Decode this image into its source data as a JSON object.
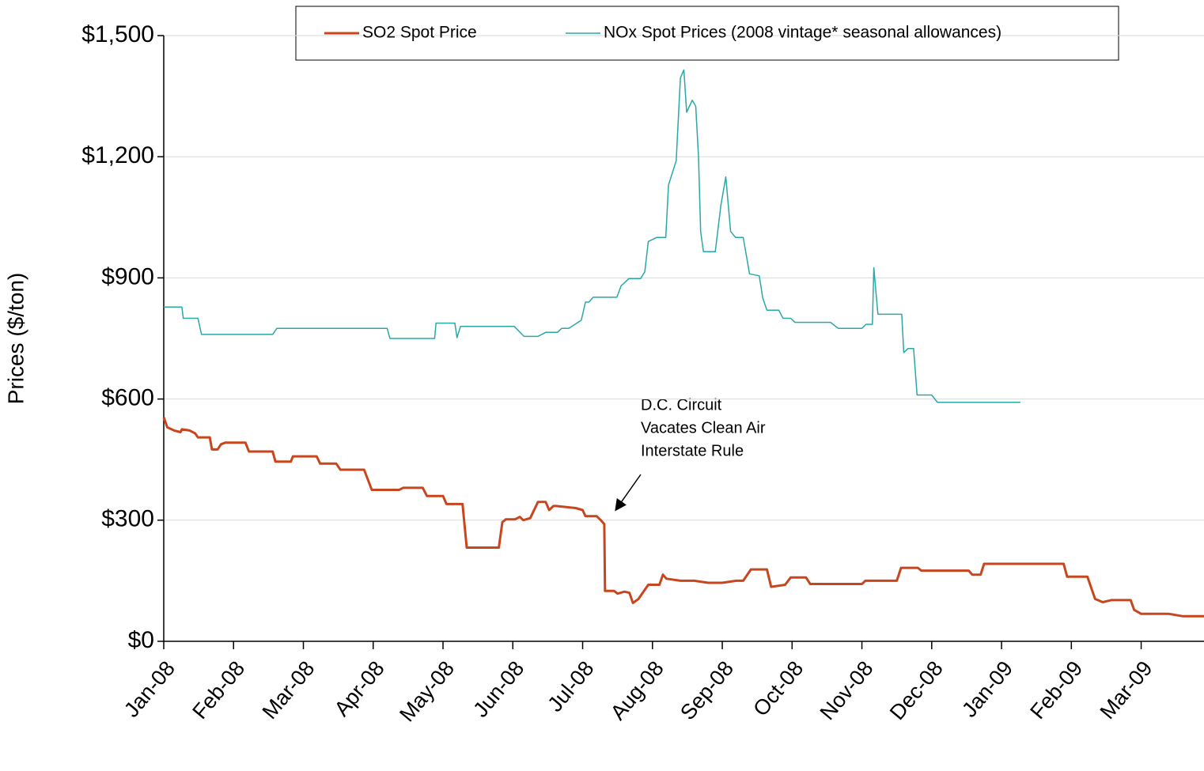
{
  "chart_data": {
    "type": "line",
    "ylabel": "Prices  ($/ton)",
    "annotation": [
      "D.C. Circuit",
      "Vacates Clean Air",
      "Interstate Rule"
    ],
    "xlim": [
      0,
      14.9
    ],
    "xticks": [
      {
        "value": 0,
        "label": "Jan-08"
      },
      {
        "value": 1,
        "label": "Feb-08"
      },
      {
        "value": 2,
        "label": "Mar-08"
      },
      {
        "value": 3,
        "label": "Apr-08"
      },
      {
        "value": 4,
        "label": "May-08"
      },
      {
        "value": 5,
        "label": "Jun-08"
      },
      {
        "value": 6,
        "label": "Jul-08"
      },
      {
        "value": 7,
        "label": "Aug-08"
      },
      {
        "value": 8,
        "label": "Sep-08"
      },
      {
        "value": 9,
        "label": "Oct-08"
      },
      {
        "value": 10,
        "label": "Nov-08"
      },
      {
        "value": 11,
        "label": "Dec-08"
      },
      {
        "value": 12,
        "label": "Jan-09"
      },
      {
        "value": 13,
        "label": "Feb-09"
      },
      {
        "value": 14,
        "label": "Mar-09"
      }
    ],
    "ylim": [
      0,
      1500
    ],
    "yticks": [
      {
        "value": 0,
        "label": "$0"
      },
      {
        "value": 300,
        "label": "$300"
      },
      {
        "value": 600,
        "label": "$600"
      },
      {
        "value": 900,
        "label": "$900"
      },
      {
        "value": 1200,
        "label": "$1,200"
      },
      {
        "value": 1500,
        "label": "$1,500"
      }
    ],
    "grid": true,
    "legend": "top",
    "series": [
      {
        "name": "SO2 Spot Price",
        "color": "#c8461e",
        "width": 3,
        "x": [
          0,
          0.05,
          0.15,
          0.24,
          0.26,
          0.37,
          0.45,
          0.49,
          0.66,
          0.69,
          0.77,
          0.82,
          0.88,
          1.17,
          1.22,
          1.56,
          1.6,
          1.82,
          1.85,
          2.19,
          2.24,
          2.47,
          2.53,
          2.87,
          2.98,
          3.37,
          3.43,
          3.71,
          3.77,
          4.0,
          4.05,
          4.28,
          4.34,
          4.8,
          4.85,
          4.9,
          5.03,
          5.1,
          5.15,
          5.25,
          5.36,
          5.47,
          5.52,
          5.58,
          5.62,
          5.9,
          6.0,
          6.04,
          6.2,
          6.26,
          6.31,
          6.32,
          6.45,
          6.5,
          6.6,
          6.67,
          6.72,
          6.8,
          6.94,
          7.1,
          7.15,
          7.2,
          7.4,
          7.6,
          7.8,
          8.0,
          8.2,
          8.3,
          8.41,
          8.64,
          8.7,
          8.9,
          8.98,
          9.2,
          9.26,
          10.0,
          10.05,
          10.5,
          10.56,
          10.8,
          10.85,
          11.53,
          11.58,
          11.7,
          11.75,
          12.89,
          12.94,
          13.23,
          13.34,
          13.45,
          13.57,
          13.85,
          13.9,
          14.0,
          14.4,
          14.6,
          14.9
        ],
        "values": [
          555,
          530,
          522,
          518,
          525,
          522,
          515,
          505,
          505,
          475,
          475,
          488,
          492,
          492,
          470,
          470,
          445,
          445,
          458,
          458,
          440,
          440,
          425,
          425,
          375,
          375,
          380,
          380,
          360,
          360,
          340,
          340,
          232,
          232,
          295,
          302,
          302,
          308,
          300,
          305,
          345,
          345,
          325,
          335,
          335,
          330,
          325,
          310,
          310,
          300,
          290,
          125,
          125,
          118,
          123,
          120,
          95,
          105,
          140,
          140,
          165,
          155,
          150,
          150,
          145,
          145,
          150,
          150,
          178,
          178,
          135,
          140,
          158,
          158,
          142,
          142,
          150,
          150,
          182,
          182,
          175,
          175,
          165,
          165,
          192,
          192,
          160,
          160,
          105,
          97,
          102,
          102,
          78,
          68,
          68,
          62,
          62
        ]
      },
      {
        "name": "NOx Spot Prices (2008 vintage* seasonal allowances)",
        "color": "#2aa8a8",
        "width": 1.5,
        "x": [
          0,
          0.26,
          0.28,
          0.49,
          0.54,
          1.56,
          1.62,
          3.2,
          3.24,
          3.88,
          3.9,
          4.17,
          4.2,
          4.25,
          5.02,
          5.16,
          5.36,
          5.47,
          5.64,
          5.7,
          5.8,
          5.98,
          6.04,
          6.09,
          6.15,
          6.49,
          6.55,
          6.66,
          6.83,
          6.89,
          6.94,
          7.06,
          7.19,
          7.23,
          7.34,
          7.4,
          7.45,
          7.49,
          7.57,
          7.62,
          7.66,
          7.69,
          7.73,
          7.9,
          7.98,
          8.05,
          8.12,
          8.19,
          8.3,
          8.39,
          8.53,
          8.58,
          8.64,
          8.81,
          8.87,
          8.98,
          9.04,
          9.55,
          9.66,
          10.0,
          10.06,
          10.15,
          10.17,
          10.23,
          10.57,
          10.6,
          10.66,
          10.74,
          10.79,
          11.0,
          11.08,
          12.27
        ],
        "values": [
          828,
          828,
          800,
          800,
          760,
          760,
          775,
          775,
          750,
          750,
          788,
          788,
          752,
          780,
          780,
          755,
          755,
          765,
          765,
          775,
          775,
          795,
          840,
          840,
          852,
          852,
          880,
          898,
          898,
          915,
          990,
          1000,
          1000,
          1130,
          1190,
          1395,
          1415,
          1310,
          1340,
          1325,
          1200,
          1015,
          965,
          965,
          1080,
          1150,
          1015,
          1000,
          1000,
          910,
          905,
          850,
          820,
          820,
          800,
          800,
          790,
          790,
          775,
          775,
          785,
          785,
          925,
          810,
          810,
          715,
          725,
          725,
          610,
          610,
          592,
          592
        ]
      }
    ]
  }
}
